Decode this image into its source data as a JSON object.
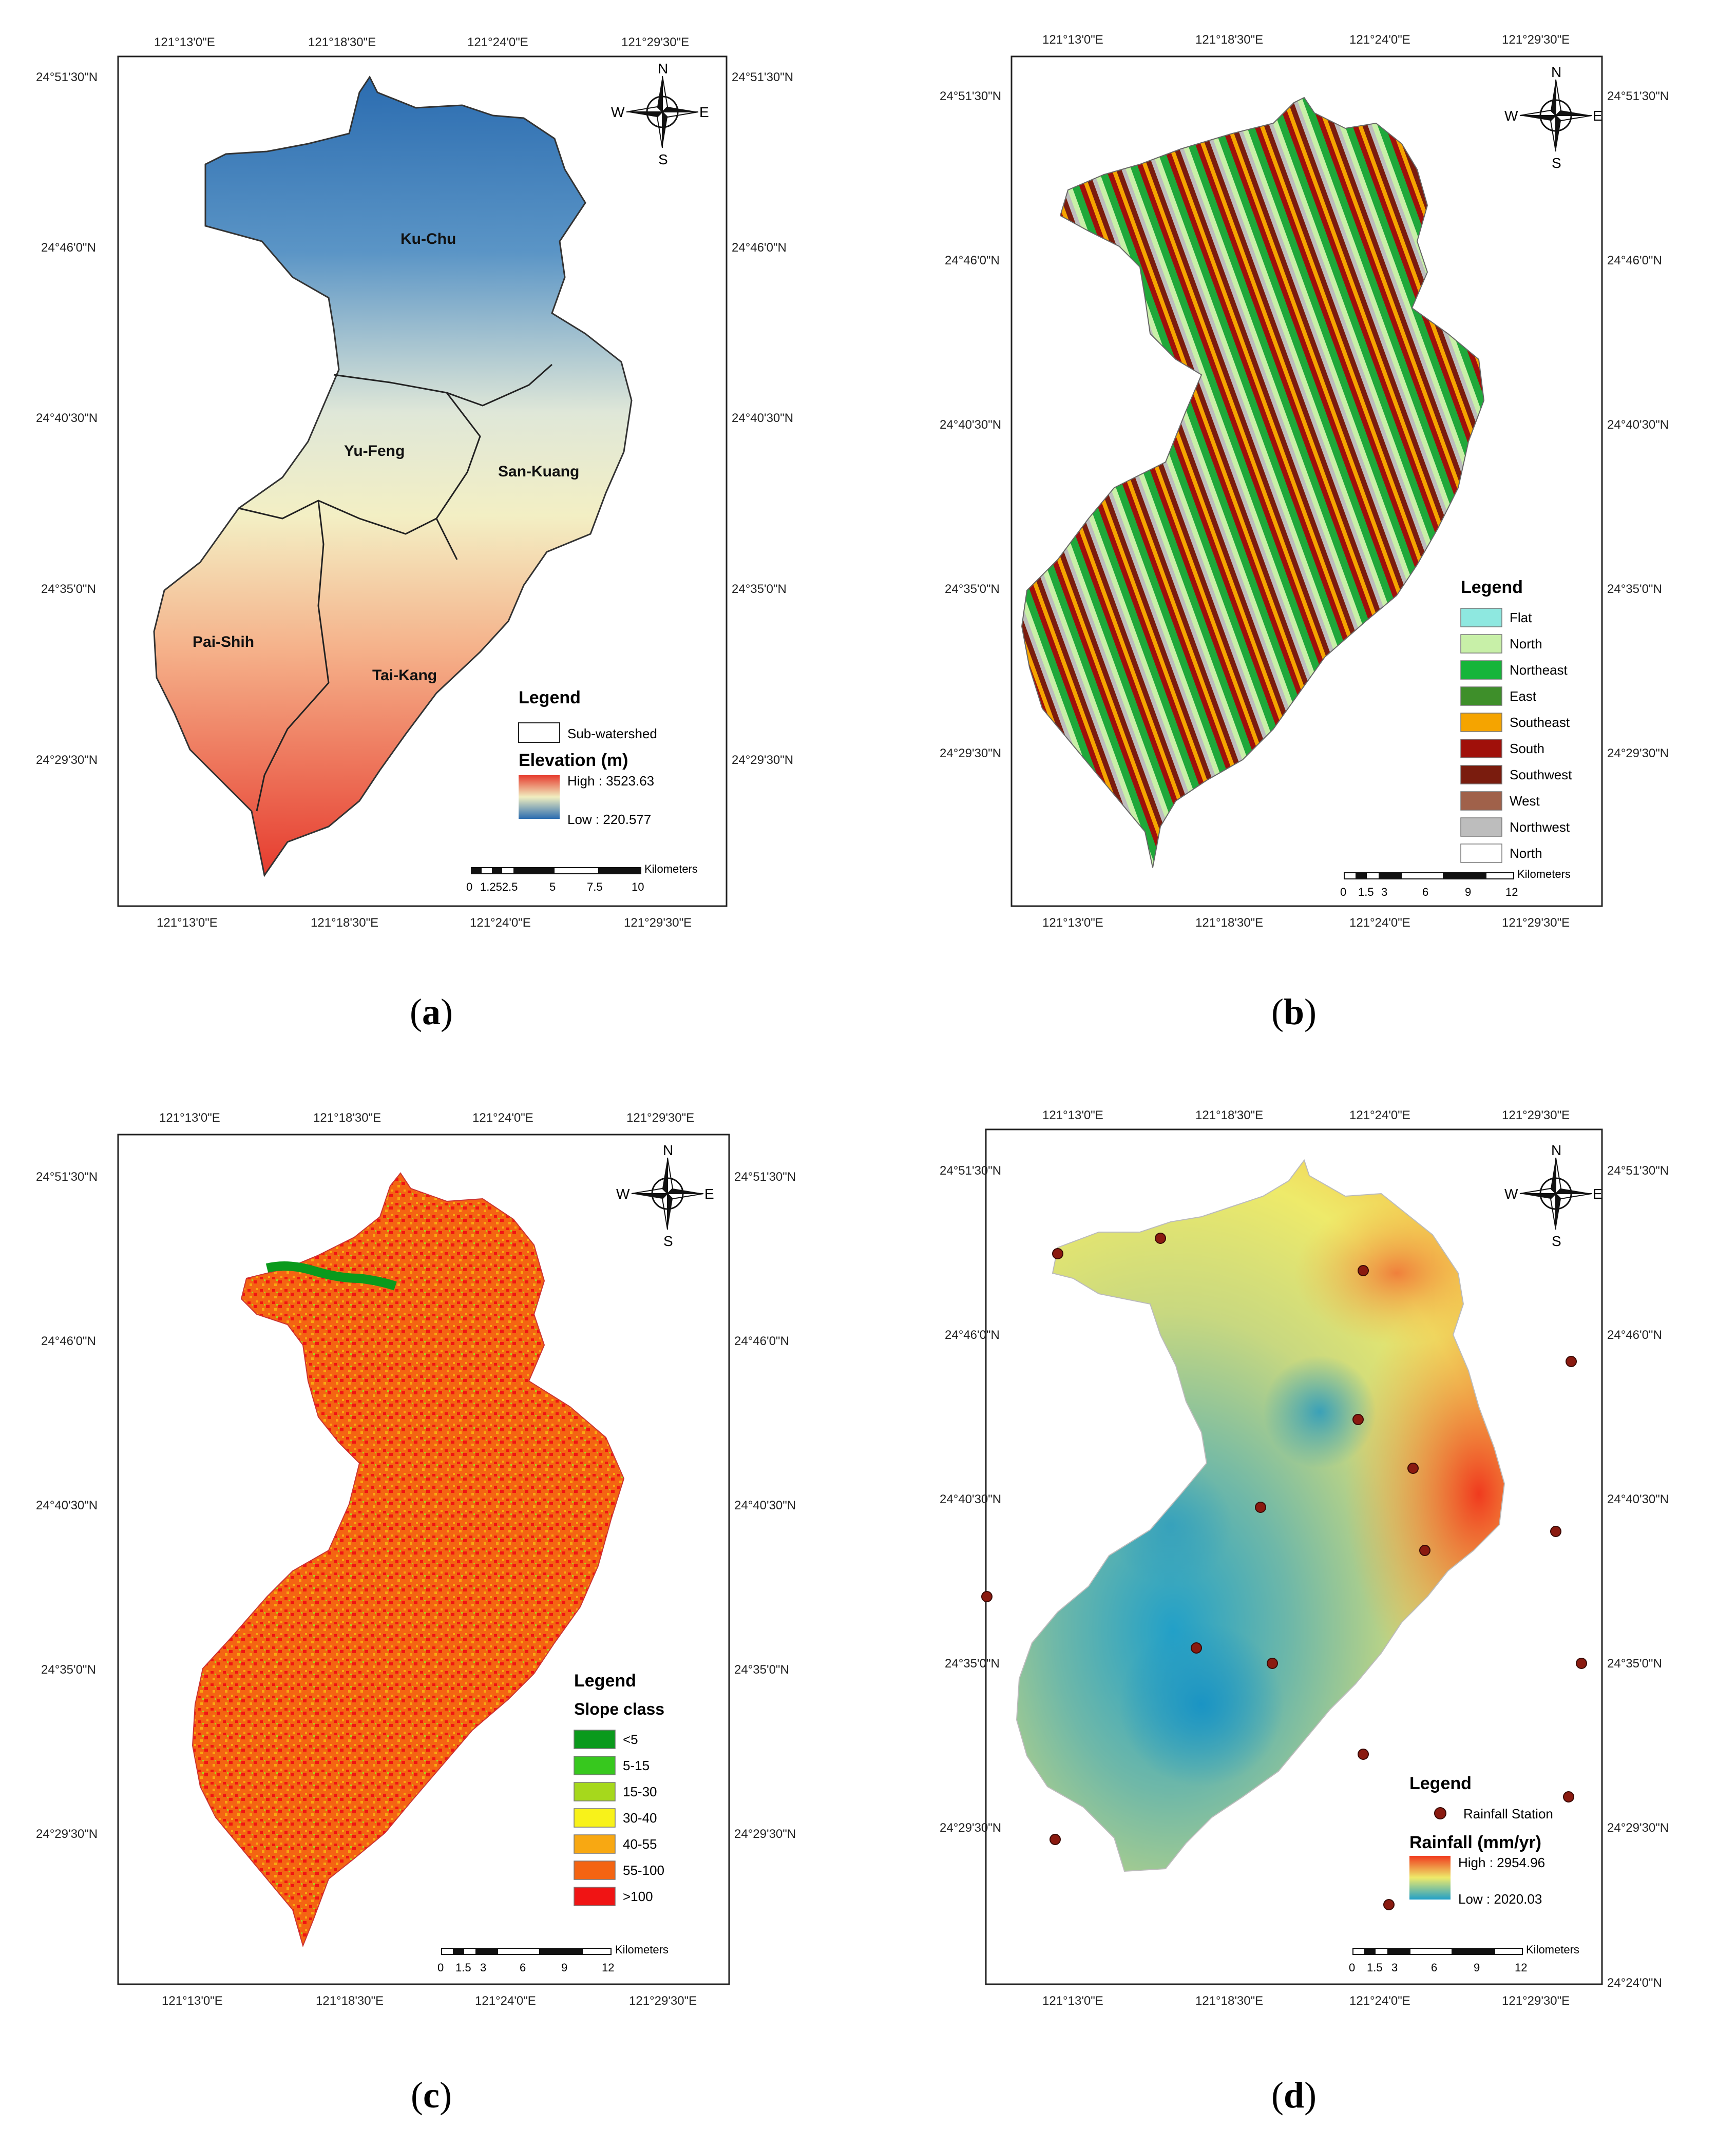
{
  "coords": {
    "lon_ticks": [
      "121°13'0\"E",
      "121°18'30\"E",
      "121°24'0\"E",
      "121°29'30\"E"
    ],
    "lat_ticks": [
      "24°51'30\"N",
      "24°46'0\"N",
      "24°40'30\"N",
      "24°35'0\"N",
      "24°29'30\"N"
    ],
    "extra_lat_tick": "24°24'0\"N"
  },
  "compass": {
    "n": "N",
    "s": "S",
    "e": "E",
    "w": "W"
  },
  "scale_units": "Kilometers",
  "panels": [
    {
      "caption_open": "(",
      "caption_letter": "a",
      "caption_close": ")",
      "subwatersheds": [
        "Ku-Chu",
        "Yu-Feng",
        "San-Kuang",
        "Pai-Shih",
        "Tai-Kang"
      ],
      "legend_title": "Legend",
      "sub_watershed_label": "Sub-watershed",
      "ramp_title": "Elevation (m)",
      "high": "High : 3523.63",
      "low": "Low : 220.577",
      "ramp_colors": {
        "high": "#e63b2e",
        "mid": "#f1eec0",
        "low": "#2b6cb0"
      },
      "scale_labels": [
        "0",
        "1.252.5",
        "5",
        "7.5",
        "10"
      ]
    },
    {
      "caption_open": "(",
      "caption_letter": "b",
      "caption_close": ")",
      "legend_title": "Legend",
      "classes": [
        {
          "label": "Flat",
          "color": "#8ee8e0"
        },
        {
          "label": "North",
          "color": "#c8f0a8"
        },
        {
          "label": "Northeast",
          "color": "#16b53a"
        },
        {
          "label": "East",
          "color": "#3e8f2a"
        },
        {
          "label": "Southeast",
          "color": "#f5a400"
        },
        {
          "label": "South",
          "color": "#a0100a"
        },
        {
          "label": "Southwest",
          "color": "#7a1c0e"
        },
        {
          "label": "West",
          "color": "#a0614a"
        },
        {
          "label": "Northwest",
          "color": "#bdbdbd"
        },
        {
          "label": "North",
          "color": "#ffffff"
        }
      ],
      "scale_labels": [
        "0",
        "1.5",
        "3",
        "6",
        "9",
        "12"
      ]
    },
    {
      "caption_open": "(",
      "caption_letter": "c",
      "caption_close": ")",
      "legend_title": "Legend",
      "class_title": "Slope class",
      "classes": [
        {
          "label": "<5",
          "color": "#0a9a1c"
        },
        {
          "label": "5-15",
          "color": "#37c81e"
        },
        {
          "label": "15-30",
          "color": "#a6d81c"
        },
        {
          "label": "30-40",
          "color": "#f8f21a"
        },
        {
          "label": "40-55",
          "color": "#f8a812"
        },
        {
          "label": "55-100",
          "color": "#f46412"
        },
        {
          "label": ">100",
          "color": "#f01414"
        }
      ],
      "scale_labels": [
        "0",
        "1.5",
        "3",
        "6",
        "9",
        "12"
      ]
    },
    {
      "caption_open": "(",
      "caption_letter": "d",
      "caption_close": ")",
      "legend_title": "Legend",
      "station_label": "Rainfall Station",
      "ramp_title": "Rainfall (mm/yr)",
      "high": "High : 2954.96",
      "low": "Low : 2020.03",
      "ramp_colors": {
        "high": "#f03a1e",
        "mid": "#eeea6a",
        "low": "#22a0c8"
      },
      "scale_labels": [
        "0",
        "1.5",
        "3",
        "6",
        "9",
        "12"
      ]
    }
  ]
}
